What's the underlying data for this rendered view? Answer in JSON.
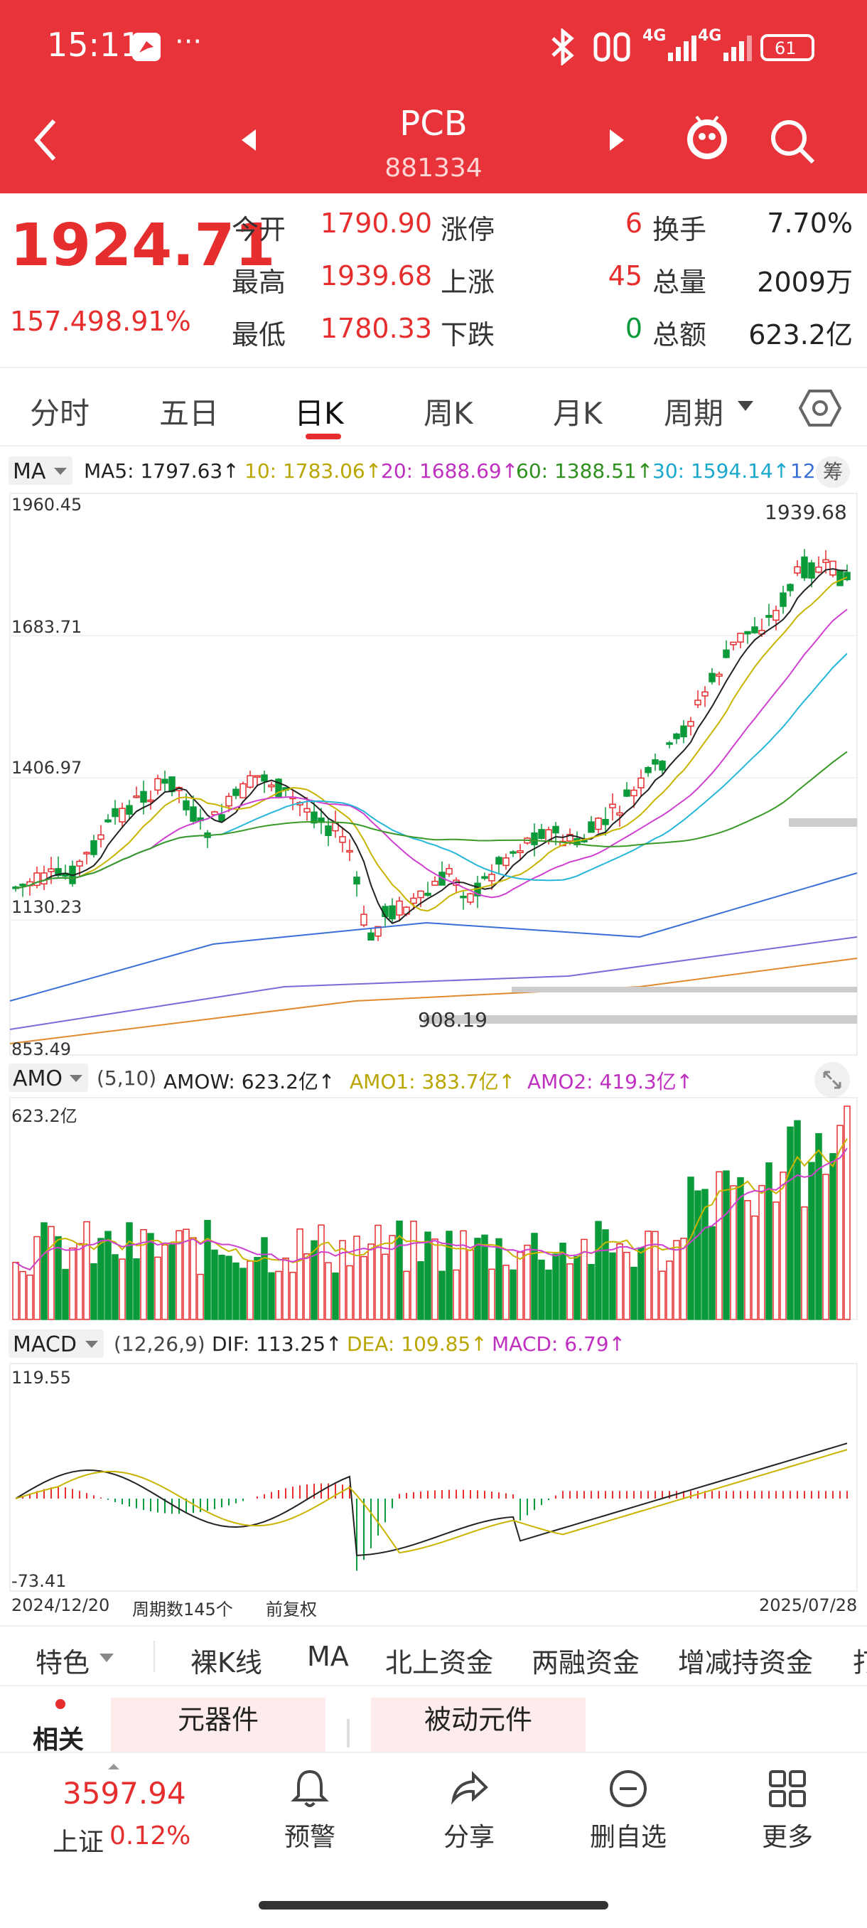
{
  "status_bar": {
    "time": "15:11",
    "dots": "···",
    "net1": "4G",
    "net2": "4G",
    "battery": "61"
  },
  "header": {
    "title": "PCB",
    "code": "881334"
  },
  "quote": {
    "price": "1924.71",
    "change": "157.49",
    "change_pct": "8.91%",
    "rows": [
      {
        "l1": "今开",
        "v1": "1790.90",
        "l2": "涨停",
        "v2": "6",
        "l3": "换手",
        "v3": "7.70%"
      },
      {
        "l1": "最高",
        "v1": "1939.68",
        "l2": "上涨",
        "v2": "45",
        "l3": "总量",
        "v3": "2009万"
      },
      {
        "l1": "最低",
        "v1": "1780.33",
        "l2": "下跌",
        "v2": "0",
        "l3": "总额",
        "v3": "623.2亿"
      }
    ]
  },
  "tabs": [
    "分时",
    "五日",
    "日K",
    "周K",
    "月K",
    "周期"
  ],
  "legend": {
    "ma_btn": "MA",
    "ma5": "MA5: 1797.63↑",
    "ma10": "10: 1783.06↑",
    "ma20": "20: 1688.69↑",
    "ma60": "60: 1388.51↑",
    "ma30": "30: 1594.14↑",
    "ma_more": "12",
    "chip": "筹",
    "amo_btn": "AMO",
    "amo_params": "(5,10)",
    "amow": "AMOW: 623.2亿↑",
    "amo1": "AMO1: 383.7亿↑",
    "amo2": "AMO2: 419.3亿↑",
    "macd_btn": "MACD",
    "macd_params": "(12,26,9)",
    "dif": "DIF: 113.25↑",
    "dea": "DEA: 109.85↑",
    "macd": "MACD: 6.79↑"
  },
  "axis": {
    "price_labels": [
      "1960.45",
      "1683.71",
      "1406.97",
      "1130.23",
      "853.49"
    ],
    "high_mark": "1939.68",
    "low_mark": "908.19",
    "vol_top": "623.2亿",
    "macd_top": "119.55",
    "macd_bottom": "-73.41",
    "date_start": "2024/12/20",
    "weeks": "周期数145个",
    "adjust": "前复权",
    "date_end": "2025/07/28"
  },
  "colors": {
    "red": "#e62e2e",
    "green": "#0a9a3a",
    "ma5": "#222222",
    "ma10": "#c9b400",
    "ma20": "#d040d0",
    "ma30": "#25b6d8",
    "ma60": "#3a9a28"
  },
  "subtabs": [
    "特色",
    "裸K线",
    "MA",
    "北上资金",
    "两融资金",
    "增减持资金",
    "打"
  ],
  "related": {
    "label": "相关",
    "tags": [
      "元器件",
      "被动元件"
    ]
  },
  "bottom": {
    "index_value": "3597.94",
    "index_name": "上证",
    "index_pct": "0.12%",
    "alert": "预警",
    "share": "分享",
    "delete": "删自选",
    "more": "更多"
  }
}
